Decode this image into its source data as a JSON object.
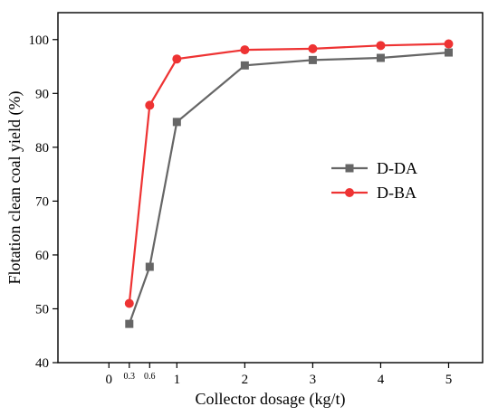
{
  "chart_data": {
    "type": "line",
    "title": "",
    "xlabel": "Collector dosage (kg/t)",
    "ylabel": "Flotation clean coal yield (%)",
    "xlim": [
      -0.75,
      5.5
    ],
    "ylim": [
      40,
      105
    ],
    "x_ticks": [
      {
        "value": 0,
        "label": "0",
        "small": false
      },
      {
        "value": 0.3,
        "label": "0.3",
        "small": true
      },
      {
        "value": 0.6,
        "label": "0.6",
        "small": true
      },
      {
        "value": 1,
        "label": "1",
        "small": false
      },
      {
        "value": 2,
        "label": "2",
        "small": false
      },
      {
        "value": 3,
        "label": "3",
        "small": false
      },
      {
        "value": 4,
        "label": "4",
        "small": false
      },
      {
        "value": 5,
        "label": "5",
        "small": false
      }
    ],
    "y_ticks": [
      40,
      50,
      60,
      70,
      80,
      90,
      100
    ],
    "grid": false,
    "legend_position": "right",
    "series": [
      {
        "name": "D-DA",
        "color": "#666666",
        "marker": "square",
        "x": [
          0.3,
          0.6,
          1,
          2,
          3,
          4,
          5
        ],
        "y": [
          47.2,
          57.8,
          84.7,
          95.2,
          96.2,
          96.6,
          97.6
        ]
      },
      {
        "name": "D-BA",
        "color": "#ee3333",
        "marker": "circle",
        "x": [
          0.3,
          0.6,
          1,
          2,
          3,
          4,
          5
        ],
        "y": [
          51.0,
          87.8,
          96.4,
          98.1,
          98.3,
          98.9,
          99.2
        ]
      }
    ]
  }
}
